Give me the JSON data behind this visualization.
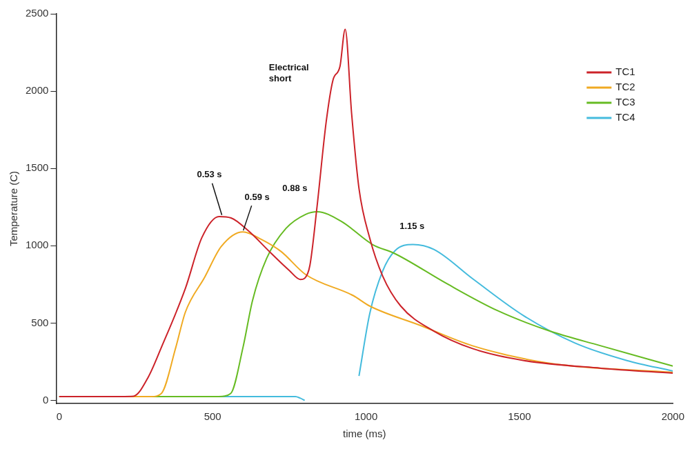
{
  "chart_data": {
    "type": "line",
    "xlabel": "time (ms)",
    "ylabel": "Temperature (C)",
    "xlim": [
      -10,
      2000
    ],
    "xticks": [
      0,
      500,
      1000,
      1500,
      2000
    ],
    "ylim": [
      -20,
      2500
    ],
    "yticks": [
      0,
      500,
      1000,
      1500,
      2000,
      2500
    ],
    "grid": false,
    "legend": "top right",
    "marker": "none",
    "line_style": "solid",
    "series": [
      {
        "name": "TC1",
        "color": "#cc2229",
        "x": [
          0,
          200,
          242,
          290,
          333,
          411,
          465,
          521,
          560,
          615,
          692,
          750,
          786,
          800,
          817,
          840,
          870,
          892,
          915,
          932,
          953,
          977,
          1012,
          1054,
          1113,
          1221,
          1347,
          1514,
          1765,
          2000
        ],
        "values": [
          25,
          25,
          27,
          150,
          343,
          723,
          1053,
          1189,
          1180,
          1099,
          949,
          840,
          782,
          790,
          873,
          1248,
          1800,
          2070,
          2160,
          2400,
          1854,
          1370,
          1049,
          805,
          610,
          448,
          335,
          258,
          208,
          176
        ]
      },
      {
        "name": "TC2",
        "color": "#f0aa22",
        "x": [
          0,
          300,
          333,
          380,
          411,
          474,
          528,
          599,
          660,
          723,
          803,
          958,
          1012,
          1178,
          1347,
          1599,
          2000
        ],
        "values": [
          25,
          25,
          45,
          343,
          570,
          796,
          995,
          1090,
          1040,
          963,
          814,
          678,
          610,
          484,
          353,
          240,
          181
        ]
      },
      {
        "name": "TC3",
        "color": "#66bb22",
        "x": [
          0,
          520,
          559,
          599,
          630,
          676,
          739,
          803,
          841,
          920,
          1021,
          1094,
          1263,
          1430,
          1599,
          1765,
          2000
        ],
        "values": [
          25,
          25,
          45,
          343,
          646,
          918,
          1112,
          1203,
          1220,
          1157,
          1008,
          949,
          755,
          579,
          448,
          353,
          222
        ]
      },
      {
        "name": "TC4",
        "color": "#44bbdd",
        "x": [
          0,
          770,
          785,
          800,
          975,
          977,
          1012,
          1054,
          1094,
          1153,
          1221,
          1347,
          1514,
          1681,
          1850,
          2000
        ],
        "values": [
          25,
          25,
          15,
          0,
          null,
          158,
          561,
          836,
          967,
          1008,
          976,
          787,
          547,
          371,
          258,
          190
        ]
      }
    ],
    "annotations": [
      {
        "text": "0.53 s",
        "x": 530,
        "y": 1190
      },
      {
        "text": "0.59 s",
        "x": 600,
        "y": 1090
      },
      {
        "text": "0.88 s",
        "x": 840,
        "y": 1220
      },
      {
        "text": "1.15 s",
        "x": 1150,
        "y": 1010
      },
      "Electrical short"
    ]
  }
}
